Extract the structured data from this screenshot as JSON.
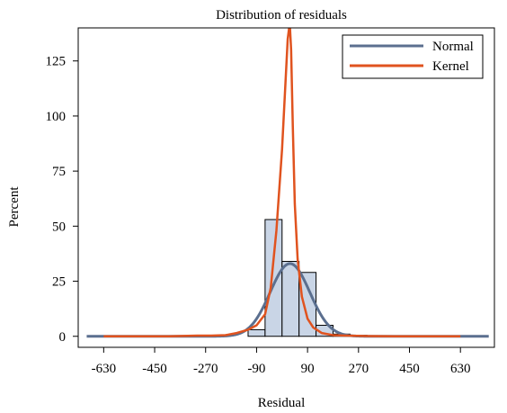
{
  "chart_data": {
    "type": "histogram",
    "title": "Distribution of residuals",
    "xlabel": "Residual",
    "ylabel": "Percent",
    "xlim": [
      -720,
      750
    ],
    "ylim": [
      -5,
      140
    ],
    "xticks": [
      -630,
      -450,
      -270,
      -90,
      90,
      270,
      450,
      630
    ],
    "yticks": [
      0,
      25,
      50,
      75,
      100,
      125
    ],
    "grid": false,
    "legend_position": "top-right",
    "histogram": {
      "bin_width": 60,
      "bins": [
        {
          "start": -120,
          "end": -60,
          "value": 3
        },
        {
          "start": -60,
          "end": 0,
          "value": 53
        },
        {
          "start": 0,
          "end": 60,
          "value": 34
        },
        {
          "start": 60,
          "end": 120,
          "value": 29
        },
        {
          "start": 120,
          "end": 180,
          "value": 5
        },
        {
          "start": 180,
          "end": 240,
          "value": 1
        },
        {
          "start": 240,
          "end": 300,
          "value": 0.5
        }
      ],
      "fill_color": "#c9d5e6",
      "edge_color": "#000000"
    },
    "series": [
      {
        "name": "Normal",
        "type": "line",
        "color": "#5b6f8f",
        "mean": 28,
        "sd": 70,
        "peak": 33
      },
      {
        "name": "Kernel",
        "type": "line",
        "color": "#e0531f",
        "x": [
          -630,
          -400,
          -300,
          -250,
          -200,
          -160,
          -120,
          -90,
          -60,
          -40,
          -20,
          0,
          10,
          20,
          25,
          28,
          32,
          38,
          45,
          55,
          70,
          90,
          110,
          140,
          180,
          230,
          300,
          400,
          630
        ],
        "y": [
          0,
          0,
          0.3,
          0.3,
          0.5,
          1.5,
          3,
          5,
          10,
          22,
          48,
          85,
          110,
          135,
          140,
          140,
          130,
          95,
          60,
          35,
          18,
          8,
          4,
          1.5,
          0.5,
          0.3,
          0.1,
          0,
          0
        ]
      }
    ]
  }
}
